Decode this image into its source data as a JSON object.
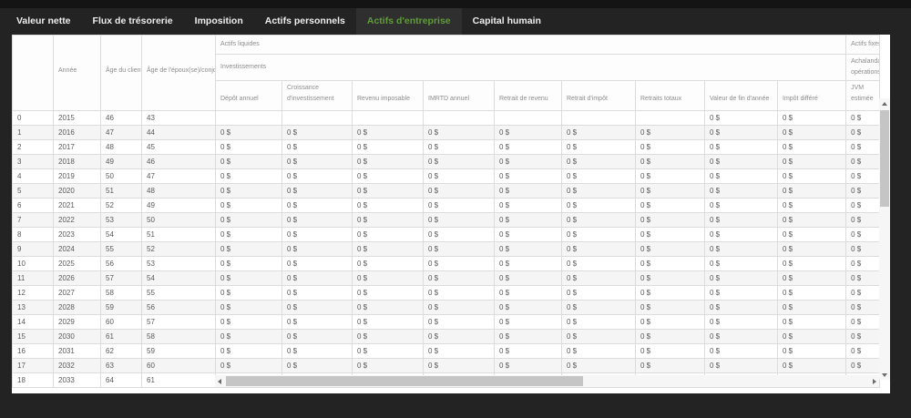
{
  "tab_bar": {
    "active_color": "#5f9d38",
    "tabs": [
      {
        "name": "valeur-nette",
        "label": "Valeur nette",
        "active": false
      },
      {
        "name": "flux-de-tresorerie",
        "label": "Flux de trésorerie",
        "active": false
      },
      {
        "name": "imposition",
        "label": "Imposition",
        "active": false
      },
      {
        "name": "actifs-personnels",
        "label": "Actifs personnels",
        "active": false
      },
      {
        "name": "actifs-entreprise",
        "label": "Actifs d'entreprise",
        "active": true
      },
      {
        "name": "capital-humain",
        "label": "Capital humain",
        "active": false
      }
    ]
  },
  "table": {
    "groups": {
      "actifs_liquides": "Actifs liquides",
      "investissements": "Investissements",
      "actifs_fixes": "Actifs fixes",
      "achalandage_line1": "Achalandage",
      "achalandage_line2": "opérations"
    },
    "columns": [
      "",
      "Année",
      "Âge du client(e)",
      "Âge de l'époux(se)/conjoint(e)",
      "Dépôt annuel",
      "Croissance d'investissement",
      "Revenu imposable",
      "IMRTD annuel",
      "Retrait de revenu",
      "Retrait d'impôt",
      "Retraits totaux",
      "Valeur de fin d'année",
      "Impôt différé",
      "JVM estimée"
    ],
    "rows": [
      [
        "0",
        "2015",
        "46",
        "43",
        "",
        "",
        "",
        "",
        "",
        "",
        "",
        "0 $",
        "0 $",
        "0 $"
      ],
      [
        "1",
        "2016",
        "47",
        "44",
        "0 $",
        "0 $",
        "0 $",
        "0 $",
        "0 $",
        "0 $",
        "0 $",
        "0 $",
        "0 $",
        "0 $"
      ],
      [
        "2",
        "2017",
        "48",
        "45",
        "0 $",
        "0 $",
        "0 $",
        "0 $",
        "0 $",
        "0 $",
        "0 $",
        "0 $",
        "0 $",
        "0 $"
      ],
      [
        "3",
        "2018",
        "49",
        "46",
        "0 $",
        "0 $",
        "0 $",
        "0 $",
        "0 $",
        "0 $",
        "0 $",
        "0 $",
        "0 $",
        "0 $"
      ],
      [
        "4",
        "2019",
        "50",
        "47",
        "0 $",
        "0 $",
        "0 $",
        "0 $",
        "0 $",
        "0 $",
        "0 $",
        "0 $",
        "0 $",
        "0 $"
      ],
      [
        "5",
        "2020",
        "51",
        "48",
        "0 $",
        "0 $",
        "0 $",
        "0 $",
        "0 $",
        "0 $",
        "0 $",
        "0 $",
        "0 $",
        "0 $"
      ],
      [
        "6",
        "2021",
        "52",
        "49",
        "0 $",
        "0 $",
        "0 $",
        "0 $",
        "0 $",
        "0 $",
        "0 $",
        "0 $",
        "0 $",
        "0 $"
      ],
      [
        "7",
        "2022",
        "53",
        "50",
        "0 $",
        "0 $",
        "0 $",
        "0 $",
        "0 $",
        "0 $",
        "0 $",
        "0 $",
        "0 $",
        "0 $"
      ],
      [
        "8",
        "2023",
        "54",
        "51",
        "0 $",
        "0 $",
        "0 $",
        "0 $",
        "0 $",
        "0 $",
        "0 $",
        "0 $",
        "0 $",
        "0 $"
      ],
      [
        "9",
        "2024",
        "55",
        "52",
        "0 $",
        "0 $",
        "0 $",
        "0 $",
        "0 $",
        "0 $",
        "0 $",
        "0 $",
        "0 $",
        "0 $"
      ],
      [
        "10",
        "2025",
        "56",
        "53",
        "0 $",
        "0 $",
        "0 $",
        "0 $",
        "0 $",
        "0 $",
        "0 $",
        "0 $",
        "0 $",
        "0 $"
      ],
      [
        "11",
        "2026",
        "57",
        "54",
        "0 $",
        "0 $",
        "0 $",
        "0 $",
        "0 $",
        "0 $",
        "0 $",
        "0 $",
        "0 $",
        "0 $"
      ],
      [
        "12",
        "2027",
        "58",
        "55",
        "0 $",
        "0 $",
        "0 $",
        "0 $",
        "0 $",
        "0 $",
        "0 $",
        "0 $",
        "0 $",
        "0 $"
      ],
      [
        "13",
        "2028",
        "59",
        "56",
        "0 $",
        "0 $",
        "0 $",
        "0 $",
        "0 $",
        "0 $",
        "0 $",
        "0 $",
        "0 $",
        "0 $"
      ],
      [
        "14",
        "2029",
        "60",
        "57",
        "0 $",
        "0 $",
        "0 $",
        "0 $",
        "0 $",
        "0 $",
        "0 $",
        "0 $",
        "0 $",
        "0 $"
      ],
      [
        "15",
        "2030",
        "61",
        "58",
        "0 $",
        "0 $",
        "0 $",
        "0 $",
        "0 $",
        "0 $",
        "0 $",
        "0 $",
        "0 $",
        "0 $"
      ],
      [
        "16",
        "2031",
        "62",
        "59",
        "0 $",
        "0 $",
        "0 $",
        "0 $",
        "0 $",
        "0 $",
        "0 $",
        "0 $",
        "0 $",
        "0 $"
      ],
      [
        "17",
        "2032",
        "63",
        "60",
        "0 $",
        "0 $",
        "0 $",
        "0 $",
        "0 $",
        "0 $",
        "0 $",
        "0 $",
        "0 $",
        "0 $"
      ],
      [
        "18",
        "2033",
        "64",
        "61",
        "0 $",
        "0 $",
        "0 $",
        "0 $",
        "0 $",
        "0 $",
        "0 $",
        "0 $",
        "0 $",
        "0 $"
      ]
    ]
  }
}
